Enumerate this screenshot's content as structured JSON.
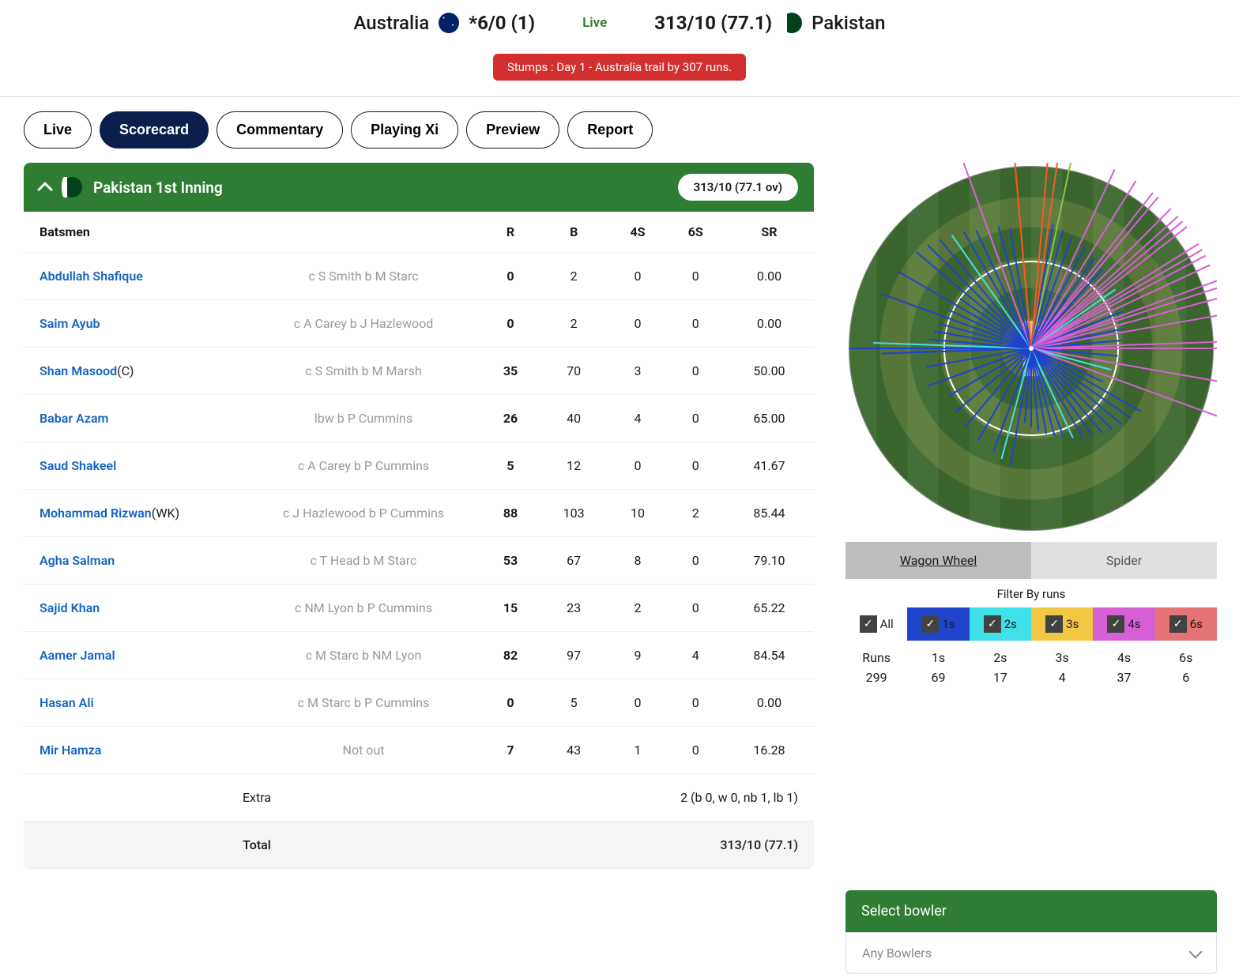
{
  "match": {
    "team1": {
      "name": "Australia",
      "score": "*6/0 (1)"
    },
    "team2": {
      "name": "Pakistan",
      "score": "313/10 (77.1)"
    },
    "status_label": "Live",
    "status_banner": "Stumps : Day 1 - Australia trail by 307 runs."
  },
  "nav_tabs": [
    {
      "label": "Live",
      "active": false
    },
    {
      "label": "Scorecard",
      "active": true
    },
    {
      "label": "Commentary",
      "active": false
    },
    {
      "label": "Playing Xi",
      "active": false
    },
    {
      "label": "Preview",
      "active": false
    },
    {
      "label": "Report",
      "active": false
    }
  ],
  "inning": {
    "title": "Pakistan 1st Inning",
    "score_badge": "313/10 (77.1 ov)"
  },
  "table": {
    "headers": [
      "Batsmen",
      "R",
      "B",
      "4S",
      "6S",
      "SR"
    ],
    "col_widths": [
      "40%",
      "20%",
      "8%",
      "8%",
      "8%",
      "8%",
      "8%"
    ],
    "rows": [
      {
        "name": "Abdullah Shafique",
        "desig": "",
        "dismissal": "c S Smith b M Starc",
        "r": "0",
        "b": "2",
        "fours": "0",
        "sixes": "0",
        "sr": "0.00"
      },
      {
        "name": "Saim Ayub",
        "desig": "",
        "dismissal": "c A Carey b J Hazlewood",
        "r": "0",
        "b": "2",
        "fours": "0",
        "sixes": "0",
        "sr": "0.00"
      },
      {
        "name": "Shan Masood",
        "desig": "(C)",
        "dismissal": "c S Smith b M Marsh",
        "r": "35",
        "b": "70",
        "fours": "3",
        "sixes": "0",
        "sr": "50.00"
      },
      {
        "name": "Babar Azam",
        "desig": "",
        "dismissal": "lbw b P Cummins",
        "r": "26",
        "b": "40",
        "fours": "4",
        "sixes": "0",
        "sr": "65.00"
      },
      {
        "name": "Saud Shakeel",
        "desig": "",
        "dismissal": "c A Carey b P Cummins",
        "r": "5",
        "b": "12",
        "fours": "0",
        "sixes": "0",
        "sr": "41.67"
      },
      {
        "name": "Mohammad Rizwan",
        "desig": "(WK)",
        "dismissal": "c J Hazlewood b P Cummins",
        "r": "88",
        "b": "103",
        "fours": "10",
        "sixes": "2",
        "sr": "85.44"
      },
      {
        "name": "Agha Salman",
        "desig": "",
        "dismissal": "c T Head b M Starc",
        "r": "53",
        "b": "67",
        "fours": "8",
        "sixes": "0",
        "sr": "79.10"
      },
      {
        "name": "Sajid Khan",
        "desig": "",
        "dismissal": "c NM Lyon b P Cummins",
        "r": "15",
        "b": "23",
        "fours": "2",
        "sixes": "0",
        "sr": "65.22"
      },
      {
        "name": "Aamer Jamal",
        "desig": "",
        "dismissal": "c M Starc b NM Lyon",
        "r": "82",
        "b": "97",
        "fours": "9",
        "sixes": "4",
        "sr": "84.54"
      },
      {
        "name": "Hasan Ali",
        "desig": "",
        "dismissal": "c M Starc b P Cummins",
        "r": "0",
        "b": "5",
        "fours": "0",
        "sixes": "0",
        "sr": "0.00"
      },
      {
        "name": "Mir Hamza",
        "desig": "",
        "dismissal": "Not out",
        "r": "7",
        "b": "43",
        "fours": "1",
        "sixes": "0",
        "sr": "16.28"
      }
    ],
    "extra_label": "Extra",
    "extra_value": "2 (b 0, w 0, nb 1, lb 1)",
    "total_label": "Total",
    "total_value": "313/10 (77.1)"
  },
  "viz": {
    "tabs": [
      {
        "label": "Wagon Wheel",
        "active": true
      },
      {
        "label": "Spider",
        "active": false
      }
    ],
    "filter_label": "Filter By runs",
    "filters": [
      {
        "label": "All",
        "color": "#ffffff",
        "checked": true
      },
      {
        "label": "1s",
        "color": "#2043cc",
        "checked": true
      },
      {
        "label": "2s",
        "color": "#3fe0e8",
        "checked": true
      },
      {
        "label": "3s",
        "color": "#f2c744",
        "checked": true
      },
      {
        "label": "4s",
        "color": "#d65fd6",
        "checked": true
      },
      {
        "label": "6s",
        "color": "#e57373",
        "checked": true
      }
    ],
    "run_stats": [
      {
        "label": "Runs",
        "value": "299"
      },
      {
        "label": "1s",
        "value": "69"
      },
      {
        "label": "2s",
        "value": "17"
      },
      {
        "label": "3s",
        "value": "4"
      },
      {
        "label": "4s",
        "value": "37"
      },
      {
        "label": "6s",
        "value": "6"
      }
    ],
    "ground": {
      "bg_outer": "#5a7a3a",
      "bg_inner": "#3d6b2f",
      "ring_color": "#ffffff",
      "pitch_color": "#d4c097"
    },
    "lines": [
      {
        "angle": 5,
        "len": 250,
        "color": "#ff5722"
      },
      {
        "angle": 8,
        "len": 250,
        "color": "#ff5722"
      },
      {
        "angle": 10,
        "len": 160,
        "color": "#2043cc"
      },
      {
        "angle": 12,
        "len": 250,
        "color": "#8bc34a"
      },
      {
        "angle": 15,
        "len": 155,
        "color": "#2043cc"
      },
      {
        "angle": 20,
        "len": 150,
        "color": "#2043cc"
      },
      {
        "angle": 25,
        "len": 250,
        "color": "#d65fd6"
      },
      {
        "angle": 28,
        "len": 145,
        "color": "#2043cc"
      },
      {
        "angle": 32,
        "len": 250,
        "color": "#d65fd6"
      },
      {
        "angle": 35,
        "len": 140,
        "color": "#2043cc"
      },
      {
        "angle": 38,
        "len": 250,
        "color": "#d65fd6"
      },
      {
        "angle": 40,
        "len": 250,
        "color": "#d65fd6"
      },
      {
        "angle": 42,
        "len": 135,
        "color": "#2043cc"
      },
      {
        "angle": 45,
        "len": 250,
        "color": "#d65fd6"
      },
      {
        "angle": 48,
        "len": 250,
        "color": "#d65fd6"
      },
      {
        "angle": 50,
        "len": 250,
        "color": "#d65fd6"
      },
      {
        "angle": 52,
        "len": 250,
        "color": "#d65fd6"
      },
      {
        "angle": 55,
        "len": 130,
        "color": "#3fe0e8"
      },
      {
        "angle": 58,
        "len": 250,
        "color": "#d65fd6"
      },
      {
        "angle": 60,
        "len": 250,
        "color": "#d65fd6"
      },
      {
        "angle": 62,
        "len": 250,
        "color": "#d65fd6"
      },
      {
        "angle": 65,
        "len": 250,
        "color": "#d65fd6"
      },
      {
        "angle": 68,
        "len": 125,
        "color": "#2043cc"
      },
      {
        "angle": 70,
        "len": 250,
        "color": "#d65fd6"
      },
      {
        "angle": 72,
        "len": 250,
        "color": "#d65fd6"
      },
      {
        "angle": 75,
        "len": 250,
        "color": "#d65fd6"
      },
      {
        "angle": 78,
        "len": 120,
        "color": "#2043cc"
      },
      {
        "angle": 80,
        "len": 250,
        "color": "#d65fd6"
      },
      {
        "angle": 85,
        "len": 115,
        "color": "#2043cc"
      },
      {
        "angle": 88,
        "len": 250,
        "color": "#d65fd6"
      },
      {
        "angle": 90,
        "len": 250,
        "color": "#d65fd6"
      },
      {
        "angle": 95,
        "len": 110,
        "color": "#2043cc"
      },
      {
        "angle": 100,
        "len": 250,
        "color": "#d65fd6"
      },
      {
        "angle": 105,
        "len": 105,
        "color": "#3fe0e8"
      },
      {
        "angle": 110,
        "len": 250,
        "color": "#d65fd6"
      },
      {
        "angle": 115,
        "len": 100,
        "color": "#2043cc"
      },
      {
        "angle": 120,
        "len": 160,
        "color": "#2043cc"
      },
      {
        "angle": 125,
        "len": 155,
        "color": "#2043cc"
      },
      {
        "angle": 130,
        "len": 150,
        "color": "#2043cc"
      },
      {
        "angle": 135,
        "len": 145,
        "color": "#2043cc"
      },
      {
        "angle": 140,
        "len": 140,
        "color": "#2043cc"
      },
      {
        "angle": 145,
        "len": 135,
        "color": "#2043cc"
      },
      {
        "angle": 150,
        "len": 130,
        "color": "#2043cc"
      },
      {
        "angle": 155,
        "len": 125,
        "color": "#3fe0e8"
      },
      {
        "angle": 160,
        "len": 120,
        "color": "#2043cc"
      },
      {
        "angle": 165,
        "len": 115,
        "color": "#2043cc"
      },
      {
        "angle": 170,
        "len": 110,
        "color": "#2043cc"
      },
      {
        "angle": 175,
        "len": 105,
        "color": "#2043cc"
      },
      {
        "angle": 180,
        "len": 100,
        "color": "#2043cc"
      },
      {
        "angle": 185,
        "len": 95,
        "color": "#2043cc"
      },
      {
        "angle": 190,
        "len": 150,
        "color": "#2043cc"
      },
      {
        "angle": 195,
        "len": 145,
        "color": "#3fe0e8"
      },
      {
        "angle": 200,
        "len": 140,
        "color": "#2043cc"
      },
      {
        "angle": 210,
        "len": 135,
        "color": "#2043cc"
      },
      {
        "angle": 220,
        "len": 130,
        "color": "#2043cc"
      },
      {
        "angle": 230,
        "len": 125,
        "color": "#2043cc"
      },
      {
        "angle": 240,
        "len": 120,
        "color": "#2043cc"
      },
      {
        "angle": 250,
        "len": 140,
        "color": "#2043cc"
      },
      {
        "angle": 260,
        "len": 135,
        "color": "#2043cc"
      },
      {
        "angle": 268,
        "len": 190,
        "color": "#2043cc"
      },
      {
        "angle": 270,
        "len": 230,
        "color": "#2043cc"
      },
      {
        "angle": 272,
        "len": 200,
        "color": "#3fe0e8"
      },
      {
        "angle": 275,
        "len": 130,
        "color": "#2043cc"
      },
      {
        "angle": 280,
        "len": 125,
        "color": "#2043cc"
      },
      {
        "angle": 285,
        "len": 120,
        "color": "#2043cc"
      },
      {
        "angle": 290,
        "len": 200,
        "color": "#2043cc"
      },
      {
        "angle": 295,
        "len": 115,
        "color": "#2043cc"
      },
      {
        "angle": 300,
        "len": 195,
        "color": "#2043cc"
      },
      {
        "angle": 305,
        "len": 110,
        "color": "#2043cc"
      },
      {
        "angle": 310,
        "len": 190,
        "color": "#2043cc"
      },
      {
        "angle": 315,
        "len": 185,
        "color": "#2043cc"
      },
      {
        "angle": 320,
        "len": 180,
        "color": "#2043cc"
      },
      {
        "angle": 325,
        "len": 175,
        "color": "#3fe0e8"
      },
      {
        "angle": 330,
        "len": 170,
        "color": "#2043cc"
      },
      {
        "angle": 335,
        "len": 165,
        "color": "#2043cc"
      },
      {
        "angle": 340,
        "len": 250,
        "color": "#d65fd6"
      },
      {
        "angle": 345,
        "len": 160,
        "color": "#2043cc"
      },
      {
        "angle": 350,
        "len": 155,
        "color": "#2043cc"
      },
      {
        "angle": 355,
        "len": 250,
        "color": "#ff5722"
      }
    ]
  },
  "bowler_panel": {
    "title": "Select bowler",
    "dropdown_placeholder": "Any Bowlers"
  }
}
